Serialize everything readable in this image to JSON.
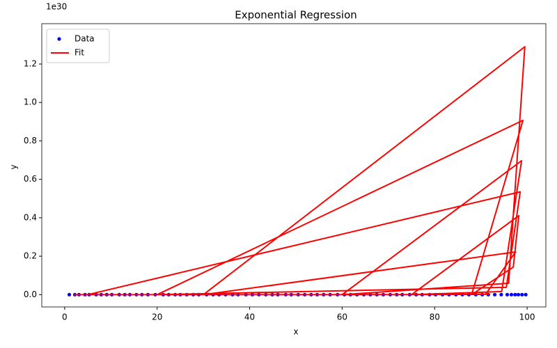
{
  "chart_data": {
    "type": "scatter",
    "title": "Exponential Regression",
    "xlabel": "x",
    "ylabel": "y",
    "y_offset_label": "1e30",
    "xlim": [
      -4.95,
      104.05
    ],
    "ylim": [
      -0.064,
      1.41
    ],
    "xticks": [
      0,
      20,
      40,
      60,
      80,
      100
    ],
    "yticks": [
      {
        "value": 0,
        "label": "0.0"
      },
      0.2,
      0.4,
      0.6,
      0.8,
      {
        "value": 1,
        "label": "1.0"
      },
      1.2
    ],
    "grid": false,
    "legend": "upper left",
    "series": [
      {
        "name": "Data",
        "type": "scatter",
        "color": "#0000ff",
        "x": [
          1,
          2.2,
          3.1,
          4.4,
          5.3,
          6.8,
          7.9,
          9.1,
          10.2,
          11.8,
          13.0,
          14.1,
          15.5,
          16.7,
          18.0,
          19.6,
          21.3,
          22.5,
          23.9,
          25.0,
          26.4,
          27.8,
          29.0,
          30.7,
          32.1,
          33.4,
          34.8,
          36.3,
          37.5,
          39.2,
          40.6,
          42.0,
          43.5,
          44.9,
          46.1,
          47.8,
          49.0,
          50.5,
          51.9,
          53.3,
          54.6,
          56.0,
          57.4,
          59.0,
          60.5,
          61.8,
          63.2,
          64.7,
          66.1,
          67.5,
          68.9,
          70.4,
          71.8,
          73.0,
          74.6,
          76.0,
          77.3,
          78.9,
          80.2,
          81.7,
          83.1,
          84.6,
          86.0,
          87.4,
          88.9,
          90.3,
          91.6,
          93.0,
          94.4,
          95.7,
          96.6,
          97.4,
          98.1,
          98.9,
          99.7
        ],
        "values": [
          0,
          0,
          0,
          0,
          0,
          0,
          0,
          0,
          0,
          0,
          0,
          0,
          0,
          0,
          0,
          0,
          0,
          0,
          0,
          0,
          0,
          0,
          0,
          0,
          0,
          0,
          0,
          0,
          0,
          0,
          0,
          0,
          0,
          0,
          0,
          0,
          0,
          0,
          0,
          0,
          0,
          0,
          0,
          0,
          0,
          0,
          0,
          0,
          0,
          0,
          0,
          0,
          0,
          0,
          0,
          0,
          0,
          0,
          0,
          0,
          0,
          0,
          0,
          0,
          0,
          0,
          0,
          0,
          0,
          0,
          0,
          0,
          0,
          0,
          0
        ]
      },
      {
        "name": "Fit",
        "type": "line",
        "color": "#ff0000",
        "x": [
          2,
          12,
          45,
          91,
          97.5,
          30,
          99.5,
          96,
          60,
          98.8,
          94.5,
          75,
          98.2,
          97,
          88,
          99.1,
          20,
          95.5,
          98.5,
          5,
          80,
          92
        ],
        "values": [
          0,
          0,
          0,
          0.001,
          0.222,
          0,
          1.29,
          0.059,
          0,
          0.697,
          0.016,
          0,
          0.411,
          0.143,
          0,
          0.907,
          0,
          0.038,
          0.535,
          0,
          0,
          0.002
        ]
      }
    ]
  }
}
